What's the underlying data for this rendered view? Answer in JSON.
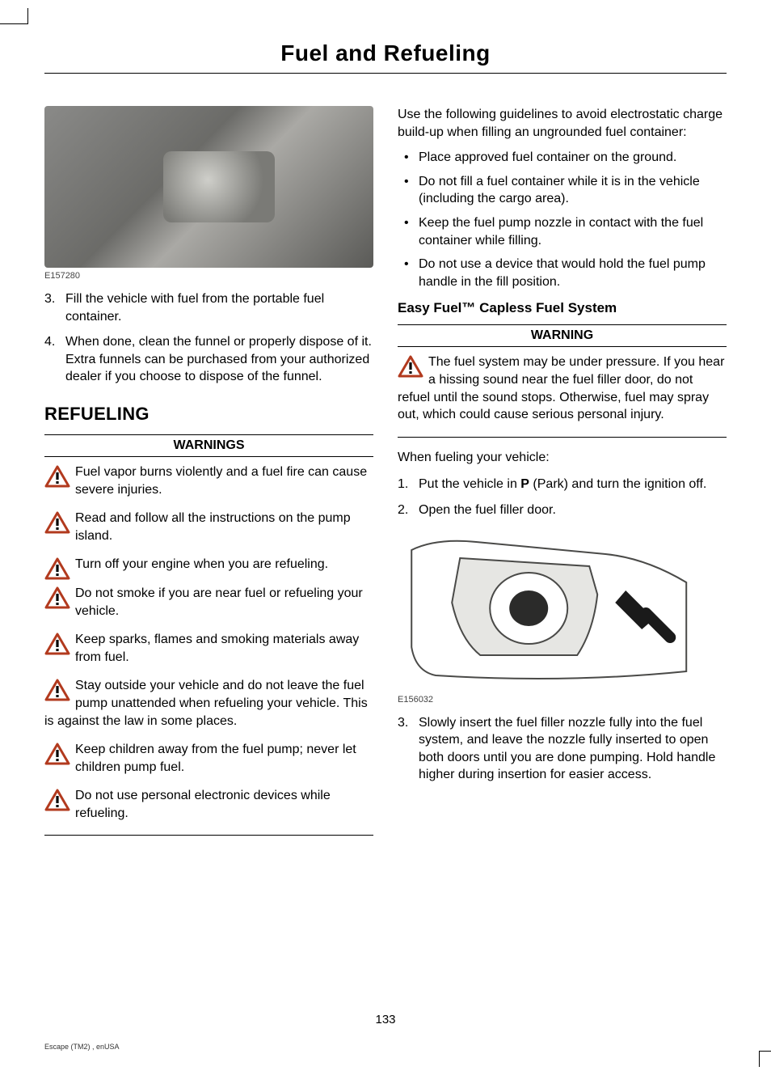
{
  "page": {
    "title": "Fuel and Refueling",
    "number": "133",
    "footer": "Escape (TM2) , enUSA"
  },
  "left": {
    "figure1": {
      "label": "E157280"
    },
    "steps_a": [
      {
        "n": "3.",
        "t": "Fill the vehicle with fuel from the portable fuel container."
      },
      {
        "n": "4.",
        "t": "When done, clean the funnel or properly dispose of it. Extra funnels can be purchased from your authorized dealer if you choose to dispose of the funnel."
      }
    ],
    "h2": "REFUELING",
    "warn_header": "WARNINGS",
    "warnings": [
      "Fuel vapor burns violently and a fuel fire can cause severe injuries.",
      "Read and follow all the instructions on the pump island.",
      "Turn off your engine when you are refueling.",
      "Do not smoke if you are near fuel or refueling your vehicle.",
      "Keep sparks, flames and smoking materials away from fuel.",
      "Stay outside your vehicle and do not leave the fuel pump unattended when refueling your vehicle. This is against the law in some places.",
      "Keep children away from the fuel pump; never let children pump fuel.",
      "Do not use personal electronic devices while refueling."
    ]
  },
  "right": {
    "intro": "Use the following guidelines to avoid electrostatic charge build-up when filling an ungrounded fuel container:",
    "bullets": [
      "Place approved fuel container on the ground.",
      "Do not fill a fuel container while it is in the vehicle (including the cargo area).",
      "Keep the fuel pump nozzle in contact with the fuel container while filling.",
      "Do not use a device that would hold the fuel pump handle in the fill position."
    ],
    "h3": "Easy Fuel™ Capless Fuel System",
    "warn_header": "WARNING",
    "warning": "The fuel system may be under pressure. If you hear a hissing sound near the fuel filler door, do not refuel until the sound stops. Otherwise, fuel may spray out, which could cause serious personal injury.",
    "para2": "When fueling your vehicle:",
    "steps_b": [
      {
        "n": "1.",
        "pre": "Put the vehicle in ",
        "bold": "P",
        "post": " (Park) and turn the ignition off."
      },
      {
        "n": "2.",
        "pre": "Open the fuel filler door.",
        "bold": "",
        "post": ""
      }
    ],
    "figure2": {
      "label": "E156032"
    },
    "steps_c": [
      {
        "n": "3.",
        "t": "Slowly insert the fuel filler nozzle fully into the fuel system, and leave the nozzle fully inserted to open both doors until you are done pumping. Hold handle higher during insertion for easier access."
      }
    ]
  },
  "style": {
    "warn_icon_stroke": "#b23a1e",
    "warn_icon_fill": "#ffffff",
    "warn_icon_bang": "#000000",
    "text_color": "#000000"
  }
}
